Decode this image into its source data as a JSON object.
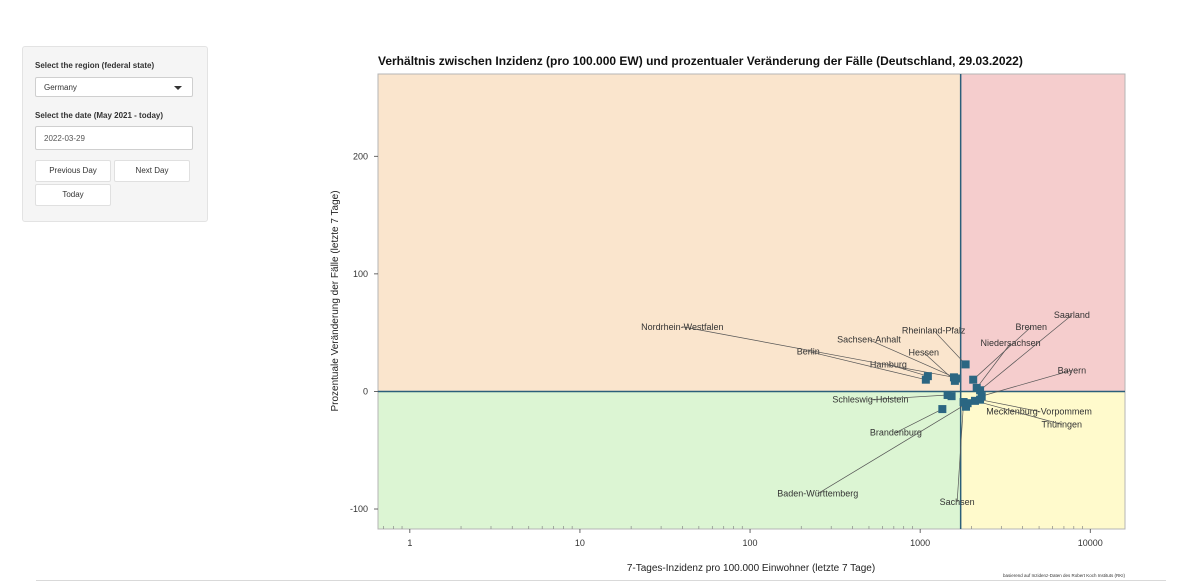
{
  "sidebar": {
    "region_label": "Select the region (federal state)",
    "region_value": "Germany",
    "date_label": "Select the date (May 2021 - today)",
    "date_value": "2022-03-29",
    "prev_label": "Previous Day",
    "next_label": "Next Day",
    "today_label": "Today"
  },
  "chart_data": {
    "type": "scatter",
    "title": "Verhältnis zwischen Inzidenz (pro 100.000 EW) und prozentualer Veränderung der Fälle (Deutschland, 29.03.2022)",
    "xlabel": "7-Tages-Inzidenz pro 100.000 Einwohner (letzte 7 Tage)",
    "ylabel": "Prozentuale Veränderung der Fälle (letzte 7 Tage)",
    "x_scale": "log",
    "xlim": [
      0.65,
      16000
    ],
    "ylim": [
      -117,
      270
    ],
    "xticks": [
      1,
      10,
      100,
      1000,
      10000
    ],
    "xtick_labels": [
      "1",
      "10",
      "100",
      "1000",
      "10000"
    ],
    "yticks": [
      -100,
      0,
      100,
      200
    ],
    "ytick_labels": [
      "-100",
      "0",
      "100",
      "200"
    ],
    "reference_lines": {
      "x": 1730,
      "y": 0
    },
    "quadrant_colors": {
      "top_left": "#fae5cd",
      "top_right": "#f5cdcd",
      "bottom_left": "#dcf5d3",
      "bottom_right": "#fffacc"
    },
    "point_color": "#2b6682",
    "caption": "basierend auf Inzidenz-Daten des Robert Koch Instituts (RKI)",
    "points": [
      {
        "name": "Saarland",
        "x": 2250,
        "y": 1,
        "label_x": 7800,
        "label_y": 65
      },
      {
        "name": "Bremen",
        "x": 2050,
        "y": 10,
        "label_x": 4500,
        "label_y": 55
      },
      {
        "name": "Niedersachsen",
        "x": 2150,
        "y": 3,
        "label_x": 3400,
        "label_y": 41
      },
      {
        "name": "Rheinland-Pfalz",
        "x": 1850,
        "y": 23,
        "label_x": 1200,
        "label_y": 52
      },
      {
        "name": "Sachsen-Anhalt",
        "x": 1650,
        "y": 11,
        "label_x": 500,
        "label_y": 44
      },
      {
        "name": "Hessen",
        "x": 1600,
        "y": 9,
        "label_x": 1050,
        "label_y": 33
      },
      {
        "name": "Hamburg",
        "x": 1110,
        "y": 13,
        "label_x": 650,
        "label_y": 23
      },
      {
        "name": "Berlin",
        "x": 1080,
        "y": 10,
        "label_x": 220,
        "label_y": 34
      },
      {
        "name": "Nordrhein-Westfalen",
        "x": 1580,
        "y": 12,
        "label_x": 40,
        "label_y": 55
      },
      {
        "name": "Bayern",
        "x": 2300,
        "y": -4,
        "label_x": 7800,
        "label_y": 18
      },
      {
        "name": "Schleswig-Holstein",
        "x": 1450,
        "y": -3,
        "label_x": 510,
        "label_y": -7
      },
      {
        "name": "Mecklenburg-Vorpommem",
        "x": 2250,
        "y": -7,
        "label_x": 5000,
        "label_y": -17
      },
      {
        "name": "Thüringen",
        "x": 2100,
        "y": -8,
        "label_x": 6800,
        "label_y": -28
      },
      {
        "name": "Brandenburg",
        "x": 1350,
        "y": -15,
        "label_x": 720,
        "label_y": -35
      },
      {
        "name": "Sachsen",
        "x": 1800,
        "y": -9,
        "label_x": 1650,
        "label_y": -94
      },
      {
        "name": "Baden-Württemberg",
        "x": 1900,
        "y": -10,
        "label_x": 250,
        "label_y": -87
      },
      {
        "name": "",
        "x": 1530,
        "y": -4
      },
      {
        "name": "",
        "x": 1860,
        "y": -13
      }
    ]
  }
}
